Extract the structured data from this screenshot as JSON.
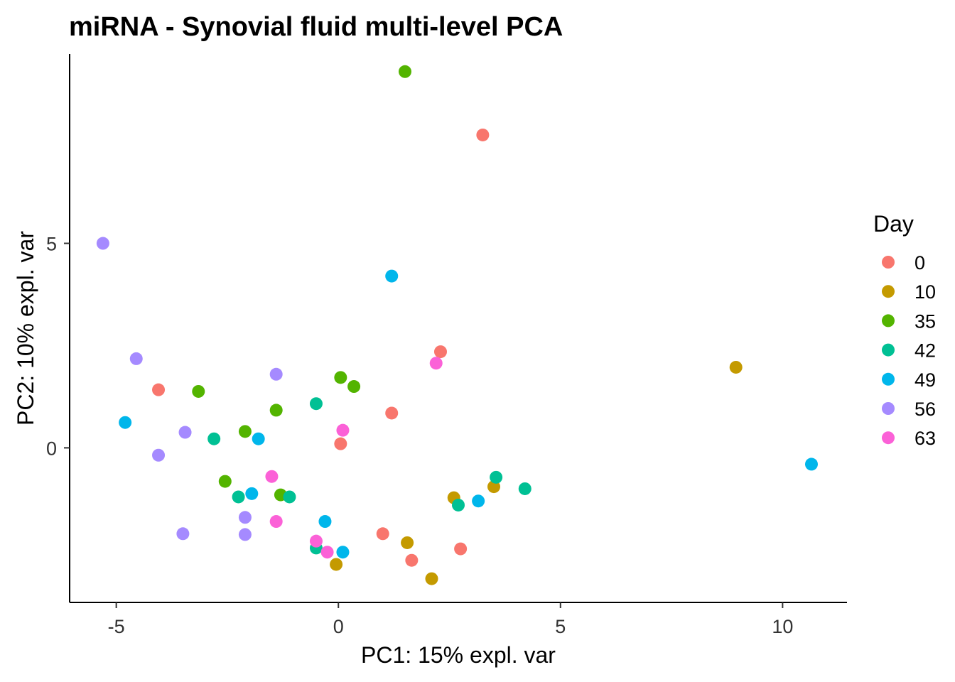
{
  "chart_data": {
    "type": "scatter",
    "title": "miRNA - Synovial fluid multi-level PCA",
    "xlabel": "PC1: 15% expl. var",
    "ylabel": "PC2: 10% expl. var",
    "xlim": [
      -6.05,
      11.45
    ],
    "ylim": [
      -3.78,
      9.63
    ],
    "xticks": [
      -5,
      0,
      5,
      10
    ],
    "yticks": [
      0,
      5
    ],
    "grid": false,
    "legend": {
      "title": "Day",
      "position": "right"
    },
    "series": [
      {
        "name": "0",
        "color": "#F8766D",
        "points": [
          [
            3.25,
            7.65
          ],
          [
            2.3,
            2.35
          ],
          [
            1.2,
            0.85
          ],
          [
            0.05,
            0.1
          ],
          [
            -4.05,
            1.42
          ],
          [
            1.0,
            -2.1
          ],
          [
            1.65,
            -2.75
          ],
          [
            2.75,
            -2.47
          ]
        ]
      },
      {
        "name": "10",
        "color": "#C49A00",
        "points": [
          [
            8.95,
            1.97
          ],
          [
            3.5,
            -0.95
          ],
          [
            2.6,
            -1.22
          ],
          [
            1.55,
            -2.32
          ],
          [
            -0.05,
            -2.85
          ],
          [
            2.1,
            -3.2
          ]
        ]
      },
      {
        "name": "35",
        "color": "#53B400",
        "points": [
          [
            1.5,
            9.2
          ],
          [
            0.05,
            1.72
          ],
          [
            0.35,
            1.5
          ],
          [
            -3.15,
            1.38
          ],
          [
            -1.4,
            0.92
          ],
          [
            -2.1,
            0.4
          ],
          [
            -2.55,
            -0.82
          ],
          [
            -1.3,
            -1.15
          ]
        ]
      },
      {
        "name": "42",
        "color": "#00C094",
        "points": [
          [
            -0.5,
            1.08
          ],
          [
            -2.8,
            0.22
          ],
          [
            3.55,
            -0.72
          ],
          [
            4.2,
            -1.0
          ],
          [
            2.7,
            -1.4
          ],
          [
            -2.25,
            -1.2
          ],
          [
            -1.1,
            -1.2
          ],
          [
            -0.5,
            -2.45
          ]
        ]
      },
      {
        "name": "49",
        "color": "#00B6EB",
        "points": [
          [
            1.2,
            4.2
          ],
          [
            -4.8,
            0.62
          ],
          [
            -1.8,
            0.22
          ],
          [
            -1.95,
            -1.12
          ],
          [
            3.15,
            -1.3
          ],
          [
            -0.3,
            -1.8
          ],
          [
            0.1,
            -2.55
          ],
          [
            10.65,
            -0.4
          ]
        ]
      },
      {
        "name": "56",
        "color": "#A58AFF",
        "points": [
          [
            -5.3,
            5.0
          ],
          [
            -4.55,
            2.18
          ],
          [
            -1.4,
            1.8
          ],
          [
            -3.45,
            0.38
          ],
          [
            -4.05,
            -0.18
          ],
          [
            -2.1,
            -1.7
          ],
          [
            -3.5,
            -2.1
          ],
          [
            -2.1,
            -2.12
          ]
        ]
      },
      {
        "name": "63",
        "color": "#FB61D7",
        "points": [
          [
            2.2,
            2.07
          ],
          [
            0.1,
            0.43
          ],
          [
            -1.5,
            -0.7
          ],
          [
            -1.4,
            -1.8
          ],
          [
            -0.5,
            -2.28
          ],
          [
            -0.25,
            -2.55
          ]
        ]
      }
    ]
  }
}
